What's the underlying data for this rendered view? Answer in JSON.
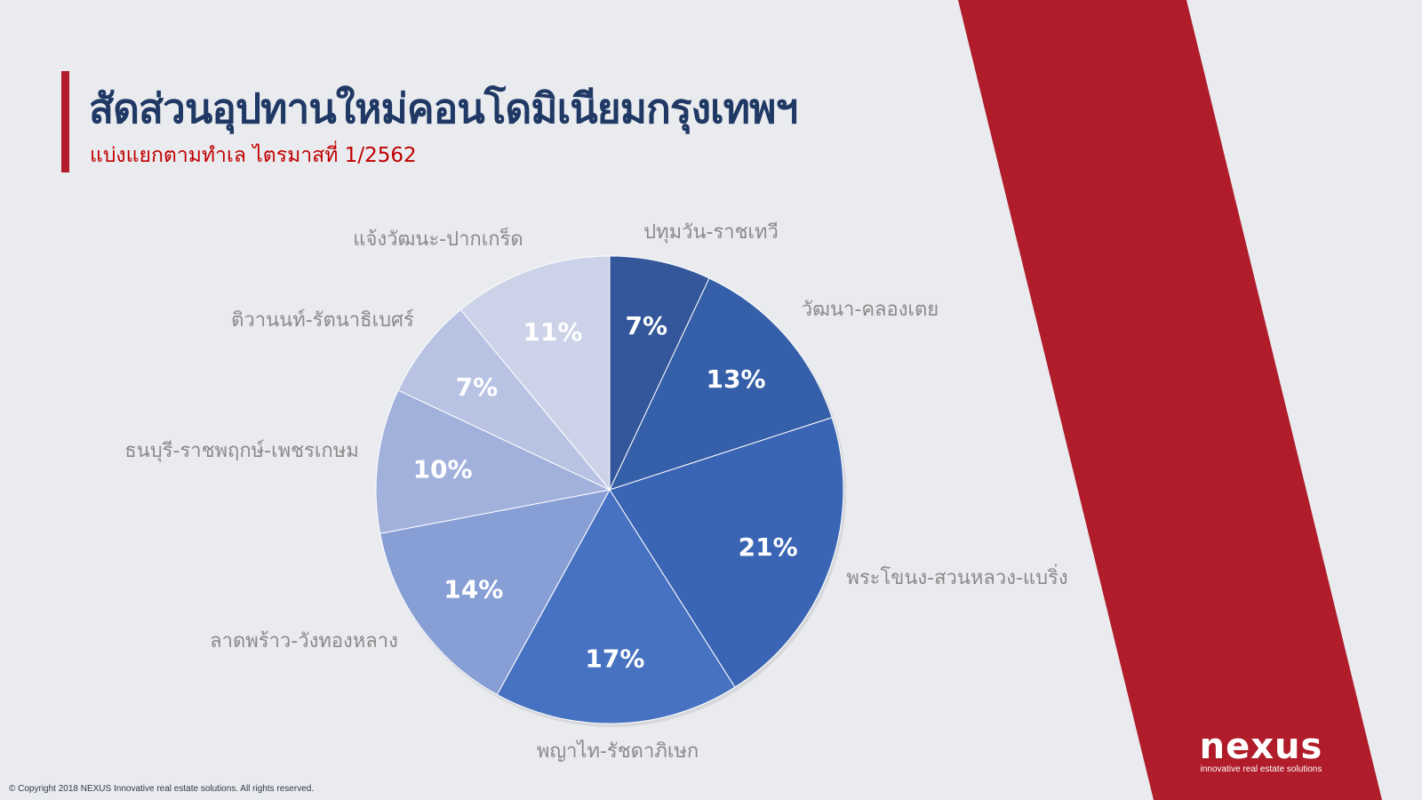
{
  "slide": {
    "title": "สัดส่วนอุปทานใหม่คอนโดมิเนียมกรุงเทพฯ",
    "subtitle": "แบ่งแยกตามทำเล ไตรมาสที่ 1/2562",
    "copyright": "© Copyright 2018 NEXUS Innovative real estate solutions. All rights reserved."
  },
  "logo": {
    "word": "nexus",
    "tagline": "innovative real estate solutions"
  },
  "colors": {
    "background": "#e9ebef",
    "accent_red": "#b01c2a",
    "title": "#1f3864",
    "subtitle": "#c00000",
    "category_label": "#8a8a8a",
    "data_label": "#ffffff"
  },
  "chart_data": {
    "type": "pie",
    "title": "",
    "start": "12 o'clock, clockwise",
    "categories": [
      "ปทุมวัน-ราชเทวี",
      "วัฒนา-คลองเตย",
      "พระโขนง-สวนหลวง-แบริ่ง",
      "พญาไท-รัชดาภิเษก",
      "ลาดพร้าว-วังทองหลาง",
      "ธนบุรี-ราชพฤกษ์-เพชรเกษม",
      "ติวานนท์-รัตนาธิเบศร์",
      "แจ้งวัฒนะ-ปากเกร็ด"
    ],
    "values": [
      7,
      13,
      21,
      17,
      14,
      10,
      7,
      11
    ],
    "value_labels": [
      "7%",
      "13%",
      "21%",
      "17%",
      "14%",
      "10%",
      "7%",
      "11%"
    ],
    "slice_colors": [
      "#33579a",
      "#355fa8",
      "#3a65b4",
      "#4672c1",
      "#889fd6",
      "#a2b1dc",
      "#b8c2e3",
      "#ccd3e9"
    ]
  }
}
